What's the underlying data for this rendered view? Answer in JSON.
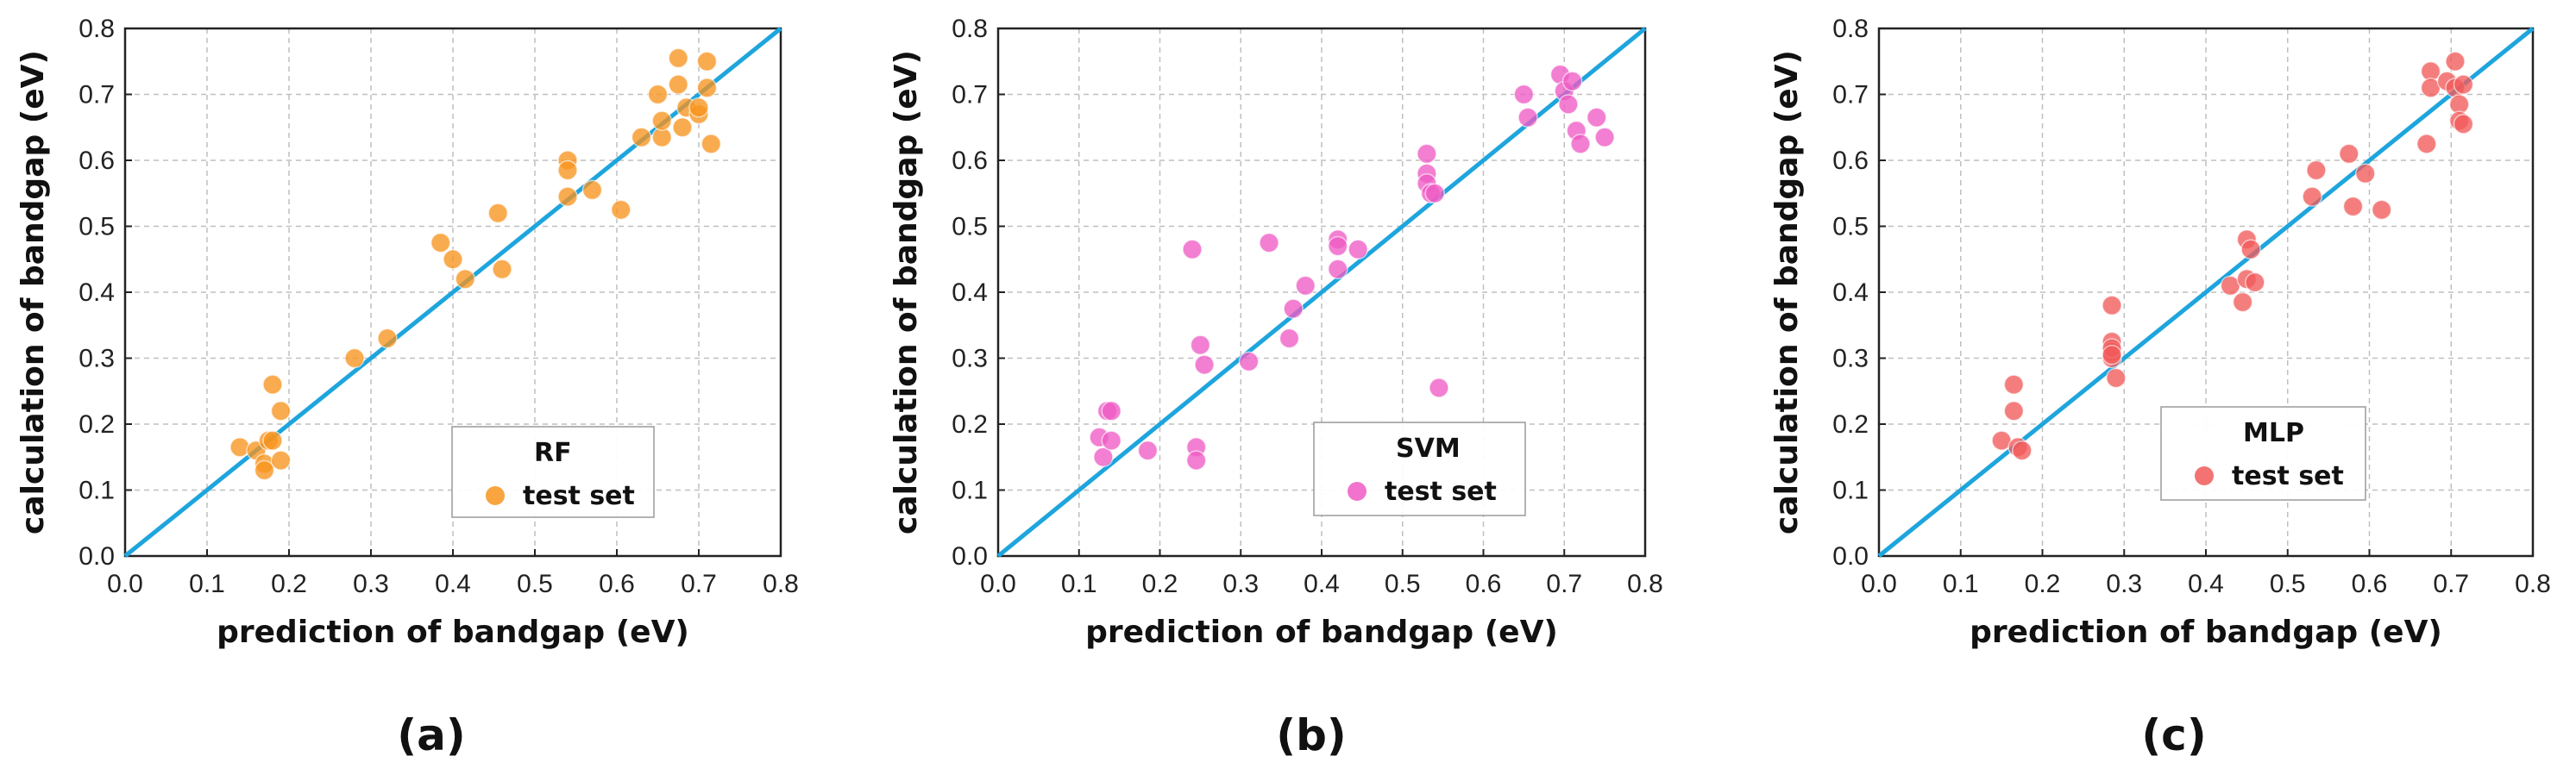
{
  "chart_data": [
    {
      "type": "scatter",
      "panel_label": "(a)",
      "legend": {
        "title": "RF",
        "entry": "test set",
        "placement": "bottom-right"
      },
      "xlabel": "prediction of bandgap  (eV)",
      "ylabel": "calculation of bandgap  (eV)",
      "xlim": [
        0.0,
        0.8
      ],
      "ylim": [
        0.0,
        0.8
      ],
      "xticks": [
        "0.0",
        "0.1",
        "0.2",
        "0.3",
        "0.4",
        "0.5",
        "0.6",
        "0.7",
        "0.8"
      ],
      "yticks": [
        "0.0",
        "0.1",
        "0.2",
        "0.3",
        "0.4",
        "0.5",
        "0.6",
        "0.7",
        "0.8"
      ],
      "grid": true,
      "reference_line": "y = x",
      "colors": {
        "marker": "#f7941d",
        "line": "#1ea5dd"
      },
      "series": [
        {
          "name": "test set",
          "x": [
            0.14,
            0.16,
            0.17,
            0.17,
            0.175,
            0.18,
            0.18,
            0.19,
            0.19,
            0.28,
            0.32,
            0.385,
            0.4,
            0.415,
            0.455,
            0.46,
            0.54,
            0.54,
            0.54,
            0.57,
            0.605,
            0.63,
            0.65,
            0.655,
            0.655,
            0.675,
            0.675,
            0.68,
            0.685,
            0.7,
            0.7,
            0.71,
            0.71,
            0.715
          ],
          "y": [
            0.165,
            0.16,
            0.14,
            0.13,
            0.175,
            0.26,
            0.175,
            0.22,
            0.145,
            0.3,
            0.33,
            0.475,
            0.45,
            0.42,
            0.52,
            0.435,
            0.6,
            0.545,
            0.585,
            0.555,
            0.525,
            0.635,
            0.7,
            0.635,
            0.66,
            0.755,
            0.715,
            0.65,
            0.68,
            0.67,
            0.68,
            0.75,
            0.71,
            0.625
          ]
        }
      ]
    },
    {
      "type": "scatter",
      "panel_label": "(b)",
      "legend": {
        "title": "SVM",
        "entry": "test set",
        "placement": "bottom-right"
      },
      "xlabel": "prediction of bandgap  (eV)",
      "ylabel": "calculation of bandgap  (eV)",
      "xlim": [
        0.0,
        0.8
      ],
      "ylim": [
        0.0,
        0.8
      ],
      "xticks": [
        "0.0",
        "0.1",
        "0.2",
        "0.3",
        "0.4",
        "0.5",
        "0.6",
        "0.7",
        "0.8"
      ],
      "yticks": [
        "0.0",
        "0.1",
        "0.2",
        "0.3",
        "0.4",
        "0.5",
        "0.6",
        "0.7",
        "0.8"
      ],
      "grid": true,
      "reference_line": "y = x",
      "colors": {
        "marker": "#ee5bc4",
        "line": "#1ea5dd"
      },
      "series": [
        {
          "name": "test set",
          "x": [
            0.125,
            0.13,
            0.135,
            0.14,
            0.14,
            0.185,
            0.24,
            0.245,
            0.245,
            0.25,
            0.255,
            0.31,
            0.335,
            0.36,
            0.365,
            0.38,
            0.42,
            0.42,
            0.42,
            0.445,
            0.53,
            0.53,
            0.53,
            0.535,
            0.54,
            0.545,
            0.65,
            0.655,
            0.695,
            0.7,
            0.705,
            0.71,
            0.715,
            0.72,
            0.74,
            0.75
          ],
          "y": [
            0.18,
            0.15,
            0.22,
            0.22,
            0.175,
            0.16,
            0.465,
            0.165,
            0.145,
            0.32,
            0.29,
            0.295,
            0.475,
            0.33,
            0.375,
            0.41,
            0.48,
            0.47,
            0.435,
            0.465,
            0.61,
            0.58,
            0.565,
            0.55,
            0.55,
            0.255,
            0.7,
            0.665,
            0.73,
            0.705,
            0.685,
            0.72,
            0.645,
            0.625,
            0.665,
            0.635
          ]
        }
      ]
    },
    {
      "type": "scatter",
      "panel_label": "(c)",
      "legend": {
        "title": "MLP",
        "entry": "test set",
        "placement": "bottom-right"
      },
      "xlabel": "prediction of bandgap  (eV)",
      "ylabel": "calculation of bandgap  (eV)",
      "xlim": [
        0.0,
        0.8
      ],
      "ylim": [
        0.0,
        0.8
      ],
      "xticks": [
        "0.0",
        "0.1",
        "0.2",
        "0.3",
        "0.4",
        "0.5",
        "0.6",
        "0.7",
        "0.8"
      ],
      "yticks": [
        "0.0",
        "0.1",
        "0.2",
        "0.3",
        "0.4",
        "0.5",
        "0.6",
        "0.7",
        "0.8"
      ],
      "grid": true,
      "reference_line": "y = x",
      "colors": {
        "marker": "#f15a5a",
        "line": "#1ea5dd"
      },
      "series": [
        {
          "name": "test set",
          "x": [
            0.15,
            0.165,
            0.165,
            0.17,
            0.175,
            0.285,
            0.285,
            0.285,
            0.285,
            0.285,
            0.285,
            0.29,
            0.43,
            0.445,
            0.45,
            0.45,
            0.455,
            0.46,
            0.53,
            0.535,
            0.575,
            0.58,
            0.595,
            0.615,
            0.67,
            0.675,
            0.675,
            0.695,
            0.705,
            0.705,
            0.71,
            0.71,
            0.715,
            0.715
          ],
          "y": [
            0.175,
            0.26,
            0.22,
            0.165,
            0.16,
            0.38,
            0.325,
            0.31,
            0.3,
            0.315,
            0.305,
            0.27,
            0.41,
            0.385,
            0.48,
            0.42,
            0.465,
            0.415,
            0.545,
            0.585,
            0.61,
            0.53,
            0.58,
            0.525,
            0.625,
            0.735,
            0.71,
            0.72,
            0.75,
            0.71,
            0.685,
            0.66,
            0.655,
            0.715
          ]
        }
      ]
    }
  ]
}
